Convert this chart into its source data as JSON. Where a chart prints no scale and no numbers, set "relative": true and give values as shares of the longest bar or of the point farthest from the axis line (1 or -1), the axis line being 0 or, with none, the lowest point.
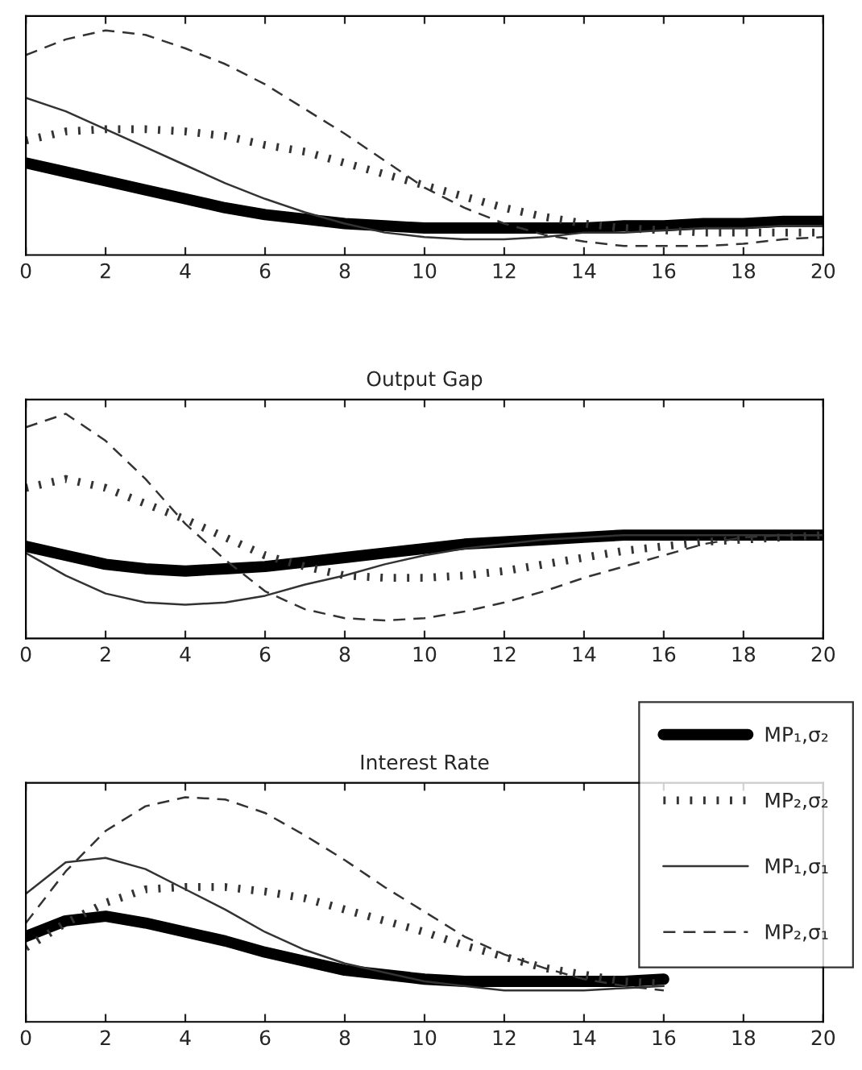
{
  "chart_data": [
    {
      "type": "line",
      "relative": true,
      "x": [
        0,
        1,
        2,
        3,
        4,
        5,
        6,
        7,
        8,
        9,
        10,
        11,
        12,
        13,
        14,
        15,
        16,
        17,
        18,
        19,
        20
      ],
      "xlim": [
        0,
        20
      ],
      "xticks": [
        0,
        2,
        4,
        6,
        8,
        10,
        12,
        14,
        16,
        18,
        20
      ],
      "tick_labels": "x",
      "grid": false,
      "legend": false,
      "marker": "none",
      "series": [
        {
          "color": "#000000",
          "line_style": "solid",
          "values": [
            0.41,
            0.37,
            0.33,
            0.29,
            0.25,
            0.21,
            0.18,
            0.16,
            0.14,
            0.13,
            0.12,
            0.12,
            0.12,
            0.12,
            0.12,
            0.13,
            0.13,
            0.14,
            0.14,
            0.15,
            0.15
          ]
        },
        {
          "color": "#333333",
          "line_style": "dotted",
          "values": [
            0.51,
            0.55,
            0.56,
            0.56,
            0.55,
            0.53,
            0.49,
            0.46,
            0.41,
            0.36,
            0.31,
            0.26,
            0.21,
            0.17,
            0.14,
            0.12,
            0.11,
            0.1,
            0.1,
            0.1,
            0.1
          ]
        },
        {
          "color": "#333333",
          "line_style": "solid",
          "values": [
            0.7,
            0.64,
            0.56,
            0.48,
            0.4,
            0.32,
            0.25,
            0.19,
            0.14,
            0.1,
            0.08,
            0.07,
            0.07,
            0.08,
            0.1,
            0.1,
            0.11,
            0.12,
            0.12,
            0.13,
            0.13
          ]
        },
        {
          "color": "#333333",
          "line_style": "dashed",
          "values": [
            0.89,
            0.96,
            1.0,
            0.98,
            0.92,
            0.85,
            0.76,
            0.65,
            0.54,
            0.42,
            0.3,
            0.21,
            0.14,
            0.09,
            0.06,
            0.04,
            0.04,
            0.04,
            0.05,
            0.07,
            0.08
          ]
        }
      ]
    },
    {
      "type": "line",
      "relative": true,
      "title": "Output Gap",
      "x": [
        0,
        1,
        2,
        3,
        4,
        5,
        6,
        7,
        8,
        9,
        10,
        11,
        12,
        13,
        14,
        15,
        16,
        17,
        18,
        19,
        20
      ],
      "xlim": [
        0,
        20
      ],
      "xticks": [
        0,
        2,
        4,
        6,
        8,
        10,
        12,
        14,
        16,
        18,
        20
      ],
      "tick_labels": "x",
      "grid": false,
      "legend": false,
      "marker": "none",
      "series": [
        {
          "color": "#000000",
          "line_style": "solid",
          "values": [
            0.41,
            0.37,
            0.33,
            0.31,
            0.3,
            0.31,
            0.32,
            0.34,
            0.36,
            0.38,
            0.4,
            0.42,
            0.43,
            0.44,
            0.45,
            0.46,
            0.46,
            0.46,
            0.46,
            0.46,
            0.46
          ]
        },
        {
          "color": "#333333",
          "line_style": "dotted",
          "values": [
            0.67,
            0.71,
            0.67,
            0.6,
            0.53,
            0.45,
            0.37,
            0.32,
            0.28,
            0.27,
            0.27,
            0.28,
            0.3,
            0.33,
            0.36,
            0.39,
            0.41,
            0.43,
            0.44,
            0.45,
            0.46
          ]
        },
        {
          "color": "#333333",
          "line_style": "solid",
          "values": [
            0.38,
            0.28,
            0.2,
            0.16,
            0.15,
            0.16,
            0.19,
            0.24,
            0.28,
            0.33,
            0.37,
            0.4,
            0.42,
            0.44,
            0.45,
            0.46,
            0.46,
            0.46,
            0.46,
            0.46,
            0.46
          ]
        },
        {
          "color": "#333333",
          "line_style": "dashed",
          "values": [
            0.94,
            1.0,
            0.88,
            0.71,
            0.51,
            0.35,
            0.21,
            0.13,
            0.09,
            0.08,
            0.09,
            0.12,
            0.16,
            0.21,
            0.27,
            0.32,
            0.37,
            0.42,
            0.45,
            0.46,
            0.46
          ]
        }
      ]
    },
    {
      "type": "line",
      "relative": true,
      "title": "Interest Rate",
      "x": [
        0,
        1,
        2,
        3,
        4,
        5,
        6,
        7,
        8,
        9,
        10,
        11,
        12,
        13,
        14,
        15,
        16
      ],
      "xlim": [
        0,
        20
      ],
      "xticks": [
        0,
        2,
        4,
        6,
        8,
        10,
        12,
        14,
        16,
        18,
        20
      ],
      "tick_labels": "x",
      "grid": false,
      "legend": "top right",
      "marker": "none",
      "series": [
        {
          "name": "MP₁,σ₂",
          "color": "#000000",
          "line_style": "solid",
          "values": [
            0.38,
            0.45,
            0.47,
            0.44,
            0.4,
            0.36,
            0.31,
            0.27,
            0.23,
            0.21,
            0.19,
            0.18,
            0.18,
            0.18,
            0.18,
            0.18,
            0.19
          ]
        },
        {
          "name": "MP₂,σ₂",
          "color": "#333333",
          "line_style": "dotted",
          "values": [
            0.33,
            0.44,
            0.53,
            0.59,
            0.6,
            0.6,
            0.58,
            0.55,
            0.5,
            0.45,
            0.4,
            0.34,
            0.29,
            0.24,
            0.21,
            0.18,
            0.17
          ]
        },
        {
          "name": "MP₁,σ₁",
          "color": "#333333",
          "line_style": "solid",
          "values": [
            0.57,
            0.71,
            0.73,
            0.68,
            0.59,
            0.5,
            0.4,
            0.32,
            0.26,
            0.22,
            0.18,
            0.16,
            0.14,
            0.14,
            0.14,
            0.15,
            0.16
          ]
        },
        {
          "name": "MP₂,σ₁",
          "color": "#333333",
          "line_style": "dashed",
          "values": [
            0.44,
            0.67,
            0.85,
            0.96,
            1.0,
            0.99,
            0.93,
            0.83,
            0.72,
            0.6,
            0.49,
            0.38,
            0.3,
            0.24,
            0.19,
            0.16,
            0.14
          ]
        }
      ]
    }
  ]
}
